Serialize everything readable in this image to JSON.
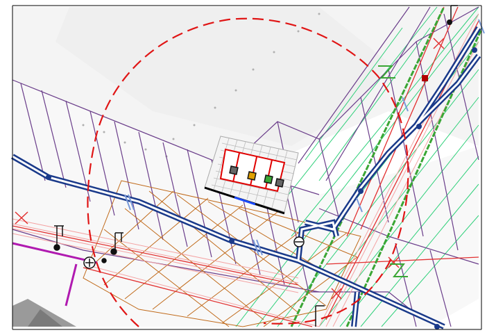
{
  "map": {
    "colors": {
      "background": "#ffffff",
      "aerial_light": "#f2f2f2",
      "aerial_mid": "#dcdcdc",
      "road_shadow": "#e8e8e8",
      "parcel_line": "#6a3d8a",
      "hatch_line": "#2fd07a",
      "blue_pipe": "#1a3a8a",
      "blue_pipe_inner": "#ffffff",
      "green_pipe": "#3aa635",
      "red_pipe": "#e23030",
      "red_pipe_light": "#f4a3a3",
      "orange_grid": "#c06a1a",
      "magenta_line": "#b01ab0",
      "dashed_circle": "#e01515",
      "frame_border": "#000000",
      "gauge_grid": "#aaaaaa",
      "gauge_fill": "#f4f4f4",
      "gauge_red": "#e00000",
      "gauge_blue": "#1a4aff"
    },
    "symbol_names": [
      "valve-icon",
      "hydrant-icon",
      "manhole-icon",
      "pump-station-icon",
      "blue-crossing-icon"
    ]
  }
}
